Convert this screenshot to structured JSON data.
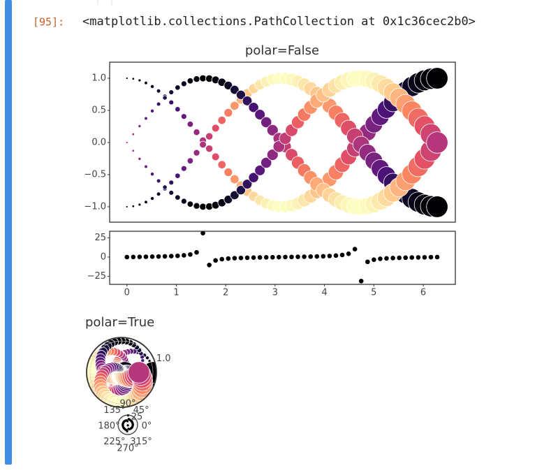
{
  "prompt": "[95]:",
  "output_text": "<matplotlib.collections.PathCollection at 0x1c36cec2b0>",
  "chart_data": [
    {
      "type": "scatter",
      "title": "polar=False",
      "cmap": "magma_r",
      "clim": [
        -1,
        1
      ],
      "size_by": "x",
      "x": [
        0,
        0.128,
        0.256,
        0.385,
        0.513,
        0.641,
        0.769,
        0.898,
        1.026,
        1.154,
        1.282,
        1.411,
        1.539,
        1.667,
        1.795,
        1.923,
        2.052,
        2.18,
        2.308,
        2.436,
        2.565,
        2.693,
        2.821,
        2.949,
        3.077,
        3.206,
        3.334,
        3.462,
        3.59,
        3.719,
        3.847,
        3.975,
        4.103,
        4.232,
        4.36,
        4.488,
        4.616,
        4.744,
        4.873,
        5.001,
        5.129,
        5.257,
        5.386,
        5.514,
        5.642,
        5.77,
        5.899,
        6.027,
        6.155,
        6.283
      ],
      "series": [
        {
          "color_by": 0,
          "values": [
            1,
            0.992,
            0.967,
            0.927,
            0.871,
            0.802,
            0.718,
            0.624,
            0.518,
            0.405,
            0.285,
            0.16,
            0.032,
            -0.096,
            -0.223,
            -0.345,
            -0.463,
            -0.572,
            -0.672,
            -0.762,
            -0.838,
            -0.901,
            -0.949,
            -0.982,
            -0.998,
            -0.998,
            -0.982,
            -0.949,
            -0.901,
            -0.838,
            -0.762,
            -0.672,
            -0.572,
            -0.463,
            -0.345,
            -0.223,
            -0.096,
            0.032,
            0.16,
            0.285,
            0.405,
            0.518,
            0.624,
            0.718,
            0.802,
            0.871,
            0.927,
            0.967,
            0.992,
            1
          ]
        },
        {
          "color_by": 0,
          "values": [
            -1,
            -0.992,
            -0.967,
            -0.927,
            -0.871,
            -0.802,
            -0.718,
            -0.624,
            -0.518,
            -0.405,
            -0.285,
            -0.16,
            -0.032,
            0.096,
            0.223,
            0.345,
            0.463,
            0.572,
            0.672,
            0.762,
            0.838,
            0.901,
            0.949,
            0.982,
            0.998,
            0.998,
            0.982,
            0.949,
            0.901,
            0.838,
            0.762,
            0.672,
            0.572,
            0.463,
            0.345,
            0.223,
            0.096,
            -0.032,
            -0.16,
            -0.285,
            -0.405,
            -0.518,
            -0.624,
            -0.718,
            -0.802,
            -0.871,
            -0.927,
            -0.967,
            -0.992,
            -1
          ]
        },
        {
          "color_by": 2,
          "values": [
            0,
            0.128,
            0.254,
            0.375,
            0.491,
            0.598,
            0.696,
            0.782,
            0.855,
            0.914,
            0.959,
            0.987,
            0.999,
            0.995,
            0.975,
            0.938,
            0.887,
            0.82,
            0.741,
            0.648,
            0.546,
            0.434,
            0.315,
            0.191,
            0.064,
            -0.064,
            -0.191,
            -0.315,
            -0.434,
            -0.546,
            -0.648,
            -0.741,
            -0.82,
            -0.887,
            -0.938,
            -0.975,
            -0.995,
            -0.999,
            -0.987,
            -0.959,
            -0.914,
            -0.855,
            -0.782,
            -0.696,
            -0.598,
            -0.491,
            -0.375,
            -0.254,
            -0.128,
            0
          ]
        },
        {
          "color_by": 2,
          "values": [
            0,
            -0.128,
            -0.254,
            -0.375,
            -0.491,
            -0.598,
            -0.696,
            -0.782,
            -0.855,
            -0.914,
            -0.959,
            -0.987,
            -0.999,
            -0.995,
            -0.975,
            -0.938,
            -0.887,
            -0.82,
            -0.741,
            -0.648,
            -0.546,
            -0.434,
            -0.315,
            -0.191,
            -0.064,
            0.064,
            0.191,
            0.315,
            0.434,
            0.546,
            0.648,
            0.741,
            0.82,
            0.887,
            0.938,
            0.975,
            0.995,
            0.999,
            0.987,
            0.959,
            0.914,
            0.855,
            0.782,
            0.696,
            0.598,
            0.491,
            0.375,
            0.254,
            0.128,
            0
          ]
        }
      ],
      "xlim": [
        -0.35,
        6.65
      ],
      "ylim": [
        -1.24,
        1.25
      ],
      "yticks": [
        {
          "value": 1,
          "label": "1.0"
        },
        {
          "value": 0.5,
          "label": "0.5"
        },
        {
          "value": 0,
          "label": "0.0"
        },
        {
          "value": -0.5,
          "label": "−0.5"
        },
        {
          "value": -1,
          "label": "−1.0"
        }
      ]
    },
    {
      "type": "scatter",
      "color": "#000000",
      "x": [
        0,
        0.128,
        0.256,
        0.385,
        0.513,
        0.641,
        0.769,
        0.898,
        1.026,
        1.154,
        1.282,
        1.411,
        1.539,
        1.667,
        1.795,
        1.923,
        2.052,
        2.18,
        2.308,
        2.436,
        2.565,
        2.693,
        2.821,
        2.949,
        3.077,
        3.206,
        3.334,
        3.462,
        3.59,
        3.719,
        3.847,
        3.975,
        4.103,
        4.232,
        4.36,
        4.488,
        4.616,
        4.744,
        4.873,
        5.001,
        5.129,
        5.257,
        5.386,
        5.514,
        5.642,
        5.77,
        5.899,
        6.027,
        6.155,
        6.283
      ],
      "values": [
        0,
        0.129,
        0.262,
        0.405,
        0.564,
        0.746,
        0.969,
        1.254,
        1.651,
        2.256,
        3.369,
        6.17,
        31.2,
        -10.36,
        -4.37,
        -2.72,
        -1.92,
        -1.43,
        -1.1,
        -0.85,
        -0.65,
        -0.48,
        -0.33,
        -0.19,
        -0.064,
        0.064,
        0.195,
        0.332,
        0.482,
        0.651,
        0.851,
        1.103,
        1.433,
        1.916,
        2.72,
        4.37,
        10.36,
        -31.2,
        -6.17,
        -3.37,
        -2.256,
        -1.651,
        -1.254,
        -0.969,
        -0.746,
        -0.564,
        -0.405,
        -0.262,
        -0.129,
        0
      ],
      "xlim": [
        -0.35,
        6.65
      ],
      "ylim": [
        -35.5,
        33.6
      ],
      "xticks": [
        0,
        1,
        2,
        3,
        4,
        5,
        6
      ],
      "yticks": [
        25,
        0,
        {
          "value": -25,
          "label": "−25"
        }
      ]
    },
    {
      "type": "polar-scatter",
      "title": "polar=True",
      "source": 0,
      "rlim": [
        -1.24,
        1.25
      ],
      "rticks": [
        {
          "value": 1,
          "label": "1.0"
        }
      ]
    },
    {
      "type": "polar-dots",
      "source": 1,
      "rlim": [
        -35.5,
        33.6
      ],
      "rticks": [
        25
      ],
      "thetaticks": [
        {
          "value": 0,
          "label": "0°"
        },
        {
          "value": 45,
          "label": "45°"
        },
        {
          "value": 90,
          "label": "90°"
        },
        {
          "value": 135,
          "label": "135°"
        },
        {
          "value": 180,
          "label": "180°"
        },
        {
          "value": 225,
          "label": "225°"
        },
        {
          "value": 270,
          "label": "270°"
        },
        {
          "value": 315,
          "label": "315°"
        }
      ]
    }
  ]
}
